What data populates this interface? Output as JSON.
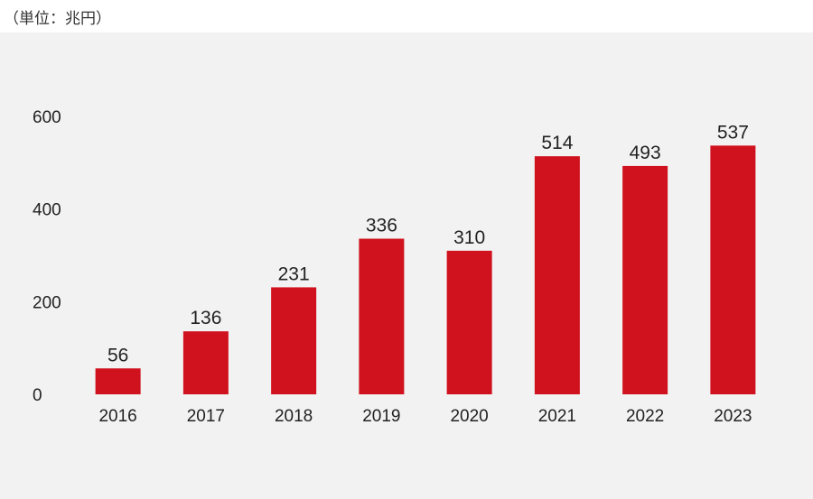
{
  "unit_label": "（単位：兆円）",
  "colors": {
    "panel_background": "#f2f2f2",
    "bar": "#d0121f",
    "text": "#222222"
  },
  "chart_data": {
    "type": "bar",
    "title": "",
    "xlabel": "",
    "ylabel": "",
    "categories": [
      "2016",
      "2017",
      "2018",
      "2019",
      "2020",
      "2021",
      "2022",
      "2023"
    ],
    "series": [
      {
        "values": [
          56,
          136,
          231,
          336,
          310,
          514,
          493,
          537
        ],
        "data_labels": [
          "56",
          "136",
          "231",
          "336",
          "310",
          "514",
          "493",
          "537"
        ]
      }
    ],
    "ylim": [
      0,
      600
    ],
    "yticks": [
      "0",
      "200",
      "400",
      "600"
    ],
    "grid": false,
    "legend": "none"
  }
}
